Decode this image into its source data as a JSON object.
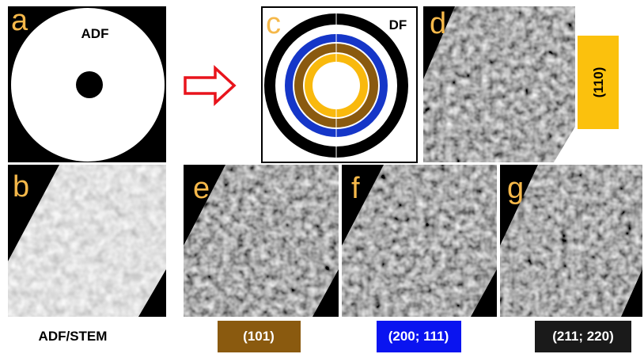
{
  "panels": {
    "a": {
      "label": "a",
      "title": "ADF"
    },
    "b": {
      "label": "b",
      "caption": "ADF/STEM"
    },
    "c": {
      "label": "c",
      "title": "DF"
    },
    "d": {
      "label": "d",
      "caption": "(110)"
    },
    "e": {
      "label": "e",
      "caption": "(101)"
    },
    "f": {
      "label": "f",
      "caption": "(200; 111)"
    },
    "g": {
      "label": "g",
      "caption": "(211; 220)"
    }
  }
}
